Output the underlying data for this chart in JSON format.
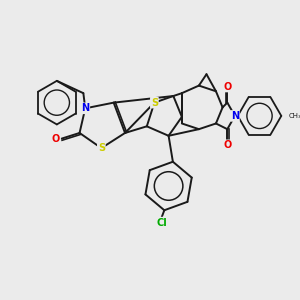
{
  "background_color": "#ebebeb",
  "bond_color": "#1a1a1a",
  "atom_colors": {
    "S": "#cccc00",
    "N": "#0000ee",
    "O": "#ee0000",
    "Cl": "#00aa00",
    "C": "#1a1a1a"
  },
  "figsize": [
    3.0,
    3.0
  ],
  "dpi": 100
}
